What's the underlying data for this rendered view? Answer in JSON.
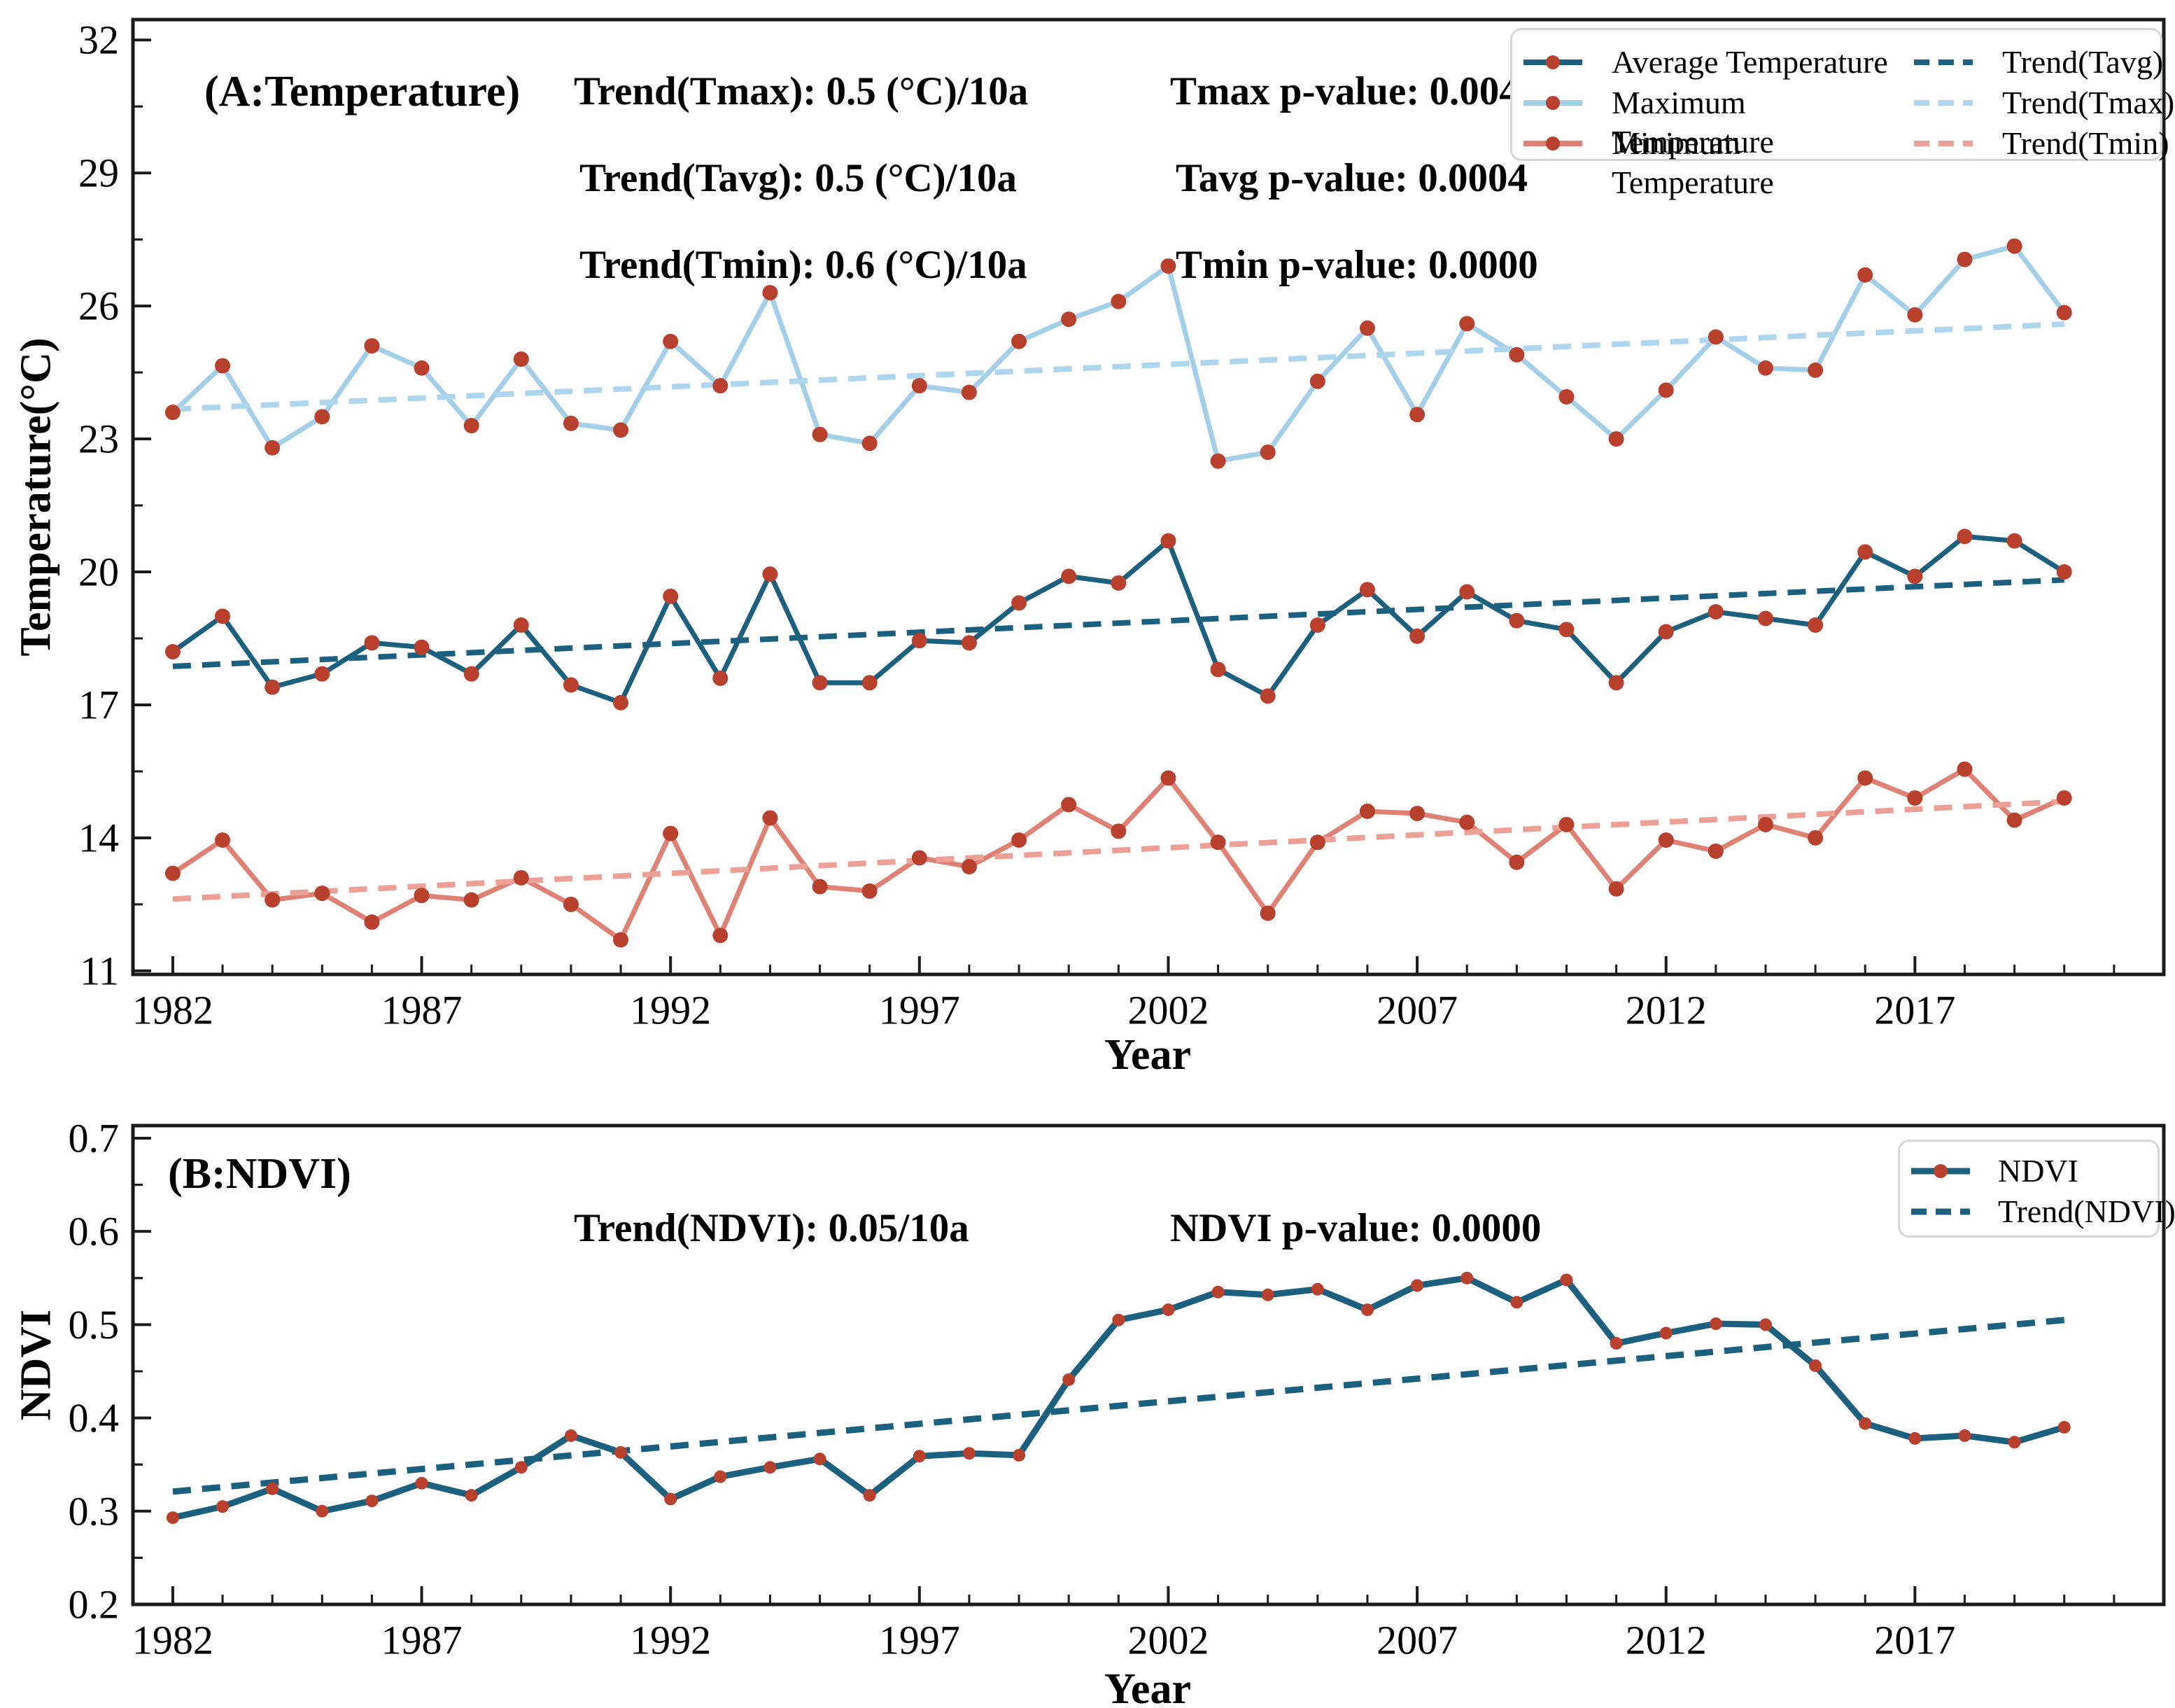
{
  "colors": {
    "avg": "#1b607f",
    "max": "#a3cfe8",
    "min": "#df8174",
    "avg_trend": "#1b607f",
    "max_trend": "#aed6ee",
    "min_trend": "#eda096",
    "ndvi": "#1b607f",
    "ndvi_trend": "#1b607f",
    "marker": "#b8402c",
    "spine": "#1c1c1c",
    "tick": "#1c1c1c",
    "legend_border": "#d8d8d8"
  },
  "panel_a": {
    "label": "(A:Temperature)",
    "ylabel": "Temperature(°C)",
    "xlabel": "Year",
    "annotations": {
      "trend_tmax": "Trend(Tmax): 0.5 (°C)/10a",
      "trend_tavg": "Trend(Tavg): 0.5 (°C)/10a",
      "trend_tmin": "Trend(Tmin): 0.6 (°C)/10a",
      "p_tmax": "Tmax p-value: 0.0044",
      "p_tavg": "Tavg p-value: 0.0004",
      "p_tmin": "Tmin p-value: 0.0000"
    }
  },
  "panel_b": {
    "label": "(B:NDVI)",
    "ylabel": "NDVI",
    "xlabel": "Year",
    "annotations": {
      "trend_ndvi": "Trend(NDVI): 0.05/10a",
      "p_ndvi": "NDVI p-value: 0.0000"
    }
  },
  "chart_data": [
    {
      "type": "line",
      "panel": "A",
      "title": "(A:Temperature)",
      "xlabel": "Year",
      "ylabel": "Temperature(°C)",
      "x": [
        1982,
        1983,
        1984,
        1985,
        1986,
        1987,
        1988,
        1989,
        1990,
        1991,
        1992,
        1993,
        1994,
        1995,
        1996,
        1997,
        1998,
        1999,
        2000,
        2001,
        2002,
        2003,
        2004,
        2005,
        2006,
        2007,
        2008,
        2009,
        2010,
        2011,
        2012,
        2013,
        2014,
        2015,
        2016,
        2017,
        2018,
        2019,
        2020
      ],
      "series": [
        {
          "name": "Average Temperature",
          "color_key": "avg",
          "linewidth": 7,
          "values": [
            18.2,
            19.0,
            17.4,
            17.7,
            18.4,
            18.3,
            17.7,
            18.8,
            17.45,
            17.05,
            19.45,
            17.6,
            19.95,
            17.5,
            17.5,
            18.45,
            18.4,
            19.3,
            19.9,
            19.75,
            20.7,
            17.8,
            17.2,
            18.8,
            19.6,
            18.55,
            19.55,
            18.9,
            18.7,
            17.5,
            18.65,
            19.1,
            18.95,
            18.8,
            20.45,
            19.9,
            20.8,
            20.7,
            20.0
          ]
        },
        {
          "name": "Maximum Temperature",
          "color_key": "max",
          "linewidth": 7,
          "values": [
            23.6,
            24.65,
            22.8,
            23.5,
            25.1,
            24.6,
            23.3,
            24.8,
            23.35,
            23.2,
            25.2,
            24.2,
            26.3,
            23.1,
            22.9,
            24.2,
            24.05,
            25.2,
            25.7,
            26.1,
            26.9,
            22.5,
            22.7,
            24.3,
            25.5,
            23.55,
            25.6,
            24.9,
            23.95,
            23.0,
            24.1,
            25.3,
            24.6,
            24.55,
            26.7,
            25.8,
            27.05,
            27.35,
            25.85
          ]
        },
        {
          "name": "Minimum Temperature",
          "color_key": "min",
          "linewidth": 7,
          "values": [
            13.2,
            13.95,
            12.6,
            12.75,
            12.1,
            12.7,
            12.6,
            13.1,
            12.5,
            11.7,
            14.1,
            11.8,
            14.45,
            12.9,
            12.8,
            13.55,
            13.35,
            13.95,
            14.75,
            14.15,
            15.35,
            13.9,
            12.3,
            13.9,
            14.6,
            14.55,
            14.35,
            13.45,
            14.3,
            12.85,
            13.95,
            13.7,
            14.3,
            14.0,
            15.35,
            14.9,
            15.55,
            14.4,
            14.9
          ]
        }
      ],
      "trends": [
        {
          "name": "Trend(Tavg)",
          "color_key": "avg_trend",
          "x0": 1982,
          "y0": 17.87,
          "x1": 2020,
          "y1": 19.82
        },
        {
          "name": "Trend(Tmax)",
          "color_key": "max_trend",
          "x0": 1982,
          "y0": 23.67,
          "x1": 2020,
          "y1": 25.59
        },
        {
          "name": "Trend(Tmin)",
          "color_key": "min_trend",
          "x0": 1982,
          "y0": 12.62,
          "x1": 2020,
          "y1": 14.82
        }
      ],
      "xlim": [
        1981.2,
        2022.0
      ],
      "ylim": [
        10.92,
        32.46
      ],
      "yticks": [
        11,
        14,
        17,
        20,
        23,
        26,
        29,
        32
      ],
      "xticks": [
        1982,
        1987,
        1992,
        1997,
        2002,
        2007,
        2012,
        2017
      ],
      "grid": false,
      "legend_position": "top-right"
    },
    {
      "type": "line",
      "panel": "B",
      "title": "(B:NDVI)",
      "xlabel": "Year",
      "ylabel": "NDVI",
      "x": [
        1982,
        1983,
        1984,
        1985,
        1986,
        1987,
        1988,
        1989,
        1990,
        1991,
        1992,
        1993,
        1994,
        1995,
        1996,
        1997,
        1998,
        1999,
        2000,
        2001,
        2002,
        2003,
        2004,
        2005,
        2006,
        2007,
        2008,
        2009,
        2010,
        2011,
        2012,
        2013,
        2014,
        2015,
        2016,
        2017,
        2018,
        2019,
        2020
      ],
      "series": [
        {
          "name": "NDVI",
          "color_key": "ndvi",
          "linewidth": 9,
          "values": [
            0.293,
            0.305,
            0.324,
            0.3,
            0.311,
            0.33,
            0.317,
            0.347,
            0.381,
            0.363,
            0.313,
            0.337,
            0.347,
            0.356,
            0.317,
            0.359,
            0.362,
            0.36,
            0.441,
            0.505,
            0.516,
            0.535,
            0.532,
            0.538,
            0.516,
            0.542,
            0.55,
            0.524,
            0.548,
            0.48,
            0.491,
            0.501,
            0.5,
            0.456,
            0.394,
            0.378,
            0.381,
            0.374,
            0.39
          ]
        }
      ],
      "trends": [
        {
          "name": "Trend(NDVI)",
          "color_key": "ndvi_trend",
          "x0": 1982,
          "y0": 0.321,
          "x1": 2020,
          "y1": 0.505
        }
      ],
      "xlim": [
        1981.2,
        2022.0
      ],
      "ylim": [
        0.2,
        0.7135
      ],
      "yticks": [
        0.2,
        0.3,
        0.4,
        0.5,
        0.6,
        0.7
      ],
      "xticks": [
        1982,
        1987,
        1992,
        1997,
        2002,
        2007,
        2012,
        2017
      ],
      "grid": false,
      "legend_position": "top-right"
    }
  ]
}
